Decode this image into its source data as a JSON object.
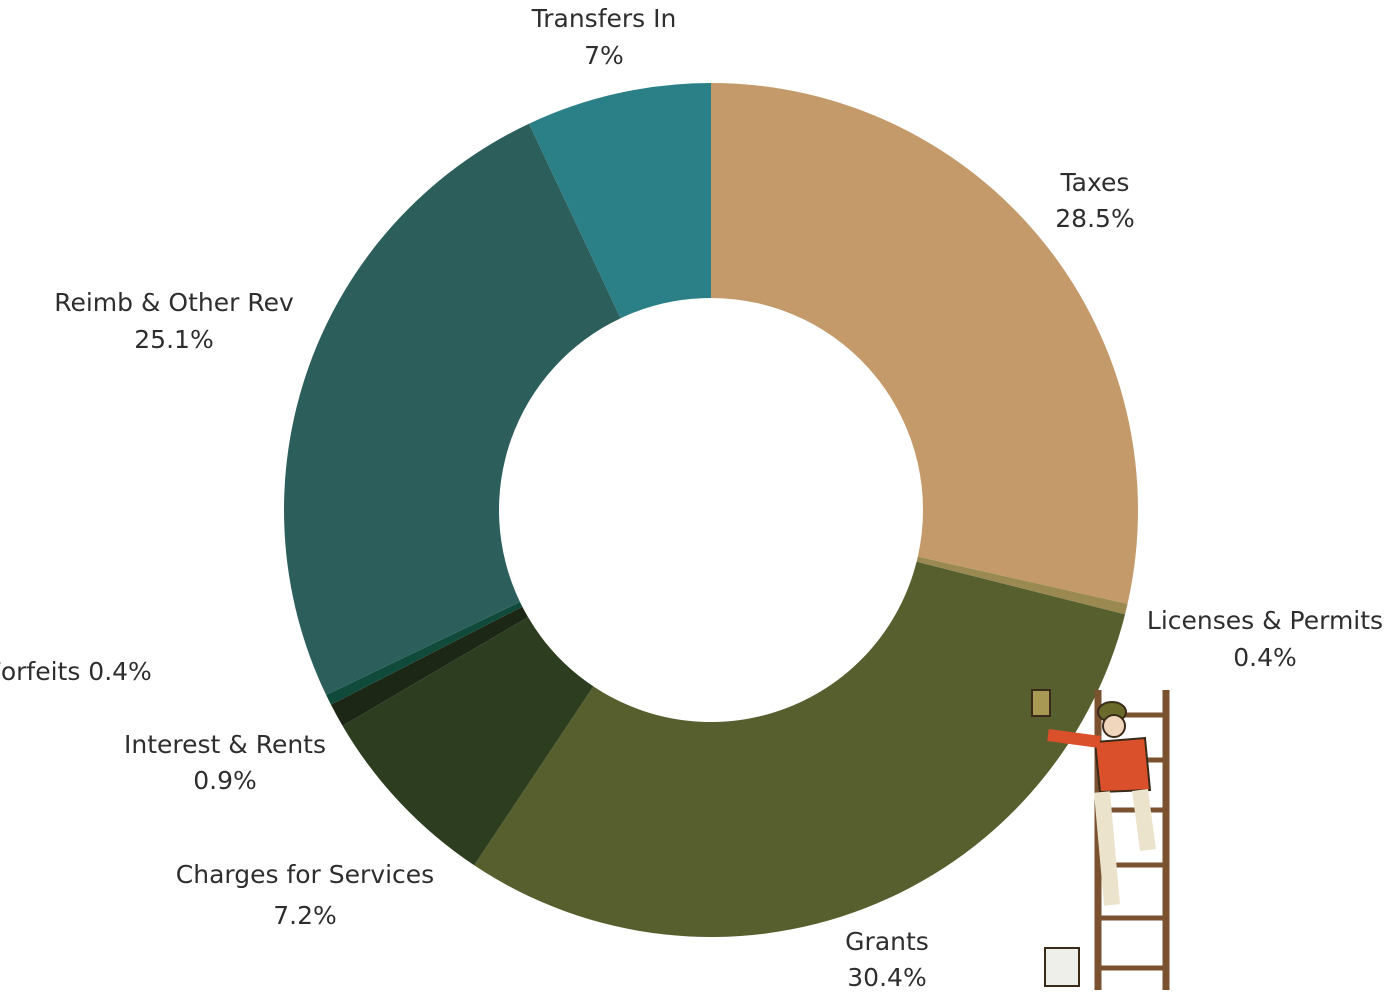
{
  "chart_data": {
    "type": "donut",
    "categories": [
      "Taxes",
      "Licenses & Permits",
      "Grants",
      "Charges for Services",
      "Interest & Rents",
      "Fines & Forfeits",
      "Reimb & Other Rev",
      "Transfers In"
    ],
    "values": [
      28.5,
      0.4,
      30.4,
      7.2,
      0.9,
      0.4,
      25.1,
      7
    ],
    "value_labels": [
      "28.5%",
      "0.4%",
      "30.4%",
      "7.2%",
      "0.9%",
      "0.4%",
      "25.1%",
      "7%"
    ],
    "colors": [
      "#c49a6a",
      "#9a8a52",
      "#575f2f",
      "#2d3d1f",
      "#1c2716",
      "#0f4a3b",
      "#2c5f5b",
      "#2b8088"
    ]
  }
}
